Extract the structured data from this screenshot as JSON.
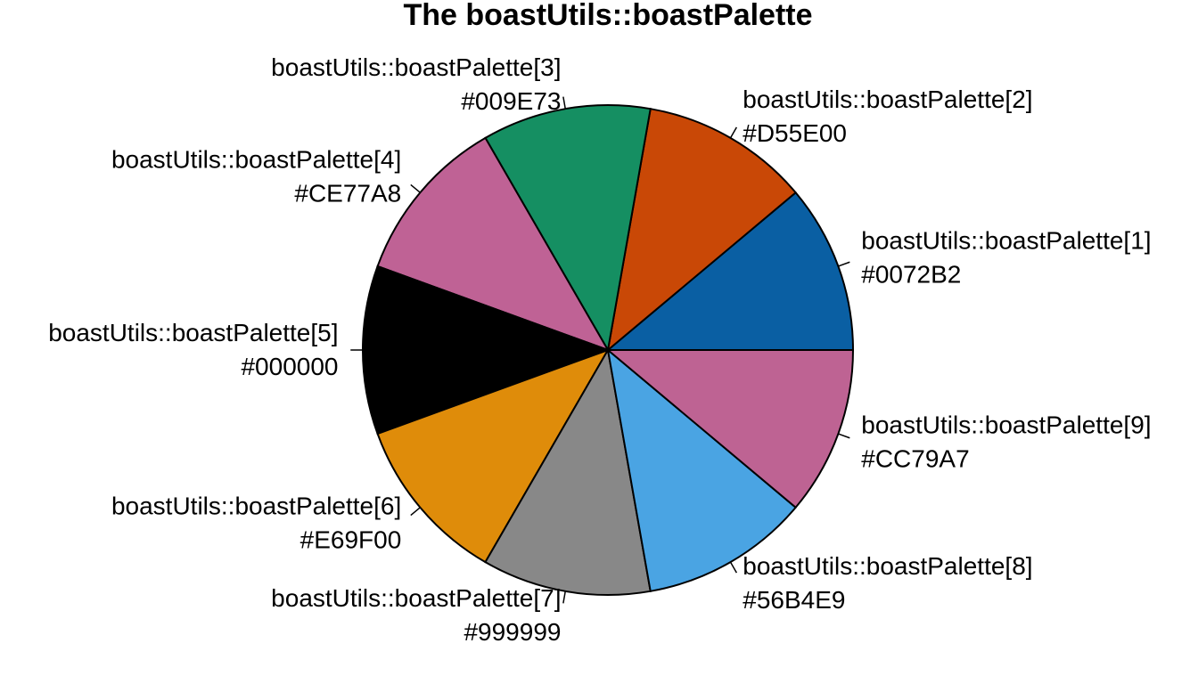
{
  "chart_data": {
    "type": "pie",
    "title": "The boastUtils::boastPalette",
    "start_angle_deg": 0,
    "direction": "counterclockwise",
    "slices": [
      {
        "label": "boastUtils::boastPalette[1]",
        "hex": "#0072B2",
        "value": 1,
        "color": "#0A5FA3"
      },
      {
        "label": "boastUtils::boastPalette[2]",
        "hex": "#D55E00",
        "value": 1,
        "color": "#C94806"
      },
      {
        "label": "boastUtils::boastPalette[3]",
        "hex": "#009E73",
        "value": 1,
        "color": "#158F62"
      },
      {
        "label": "boastUtils::boastPalette[4]",
        "hex": "#CE77A8",
        "value": 1,
        "color": "#BF6295"
      },
      {
        "label": "boastUtils::boastPalette[5]",
        "hex": "#000000",
        "value": 1,
        "color": "#000000"
      },
      {
        "label": "boastUtils::boastPalette[6]",
        "hex": "#E69F00",
        "value": 1,
        "color": "#DF8C0A"
      },
      {
        "label": "boastUtils::boastPalette[7]",
        "hex": "#999999",
        "value": 1,
        "color": "#888888"
      },
      {
        "label": "boastUtils::boastPalette[8]",
        "hex": "#56B4E9",
        "value": 1,
        "color": "#4AA4E3"
      },
      {
        "label": "boastUtils::boastPalette[9]",
        "hex": "#CC79A7",
        "value": 1,
        "color": "#BE6393"
      }
    ]
  }
}
